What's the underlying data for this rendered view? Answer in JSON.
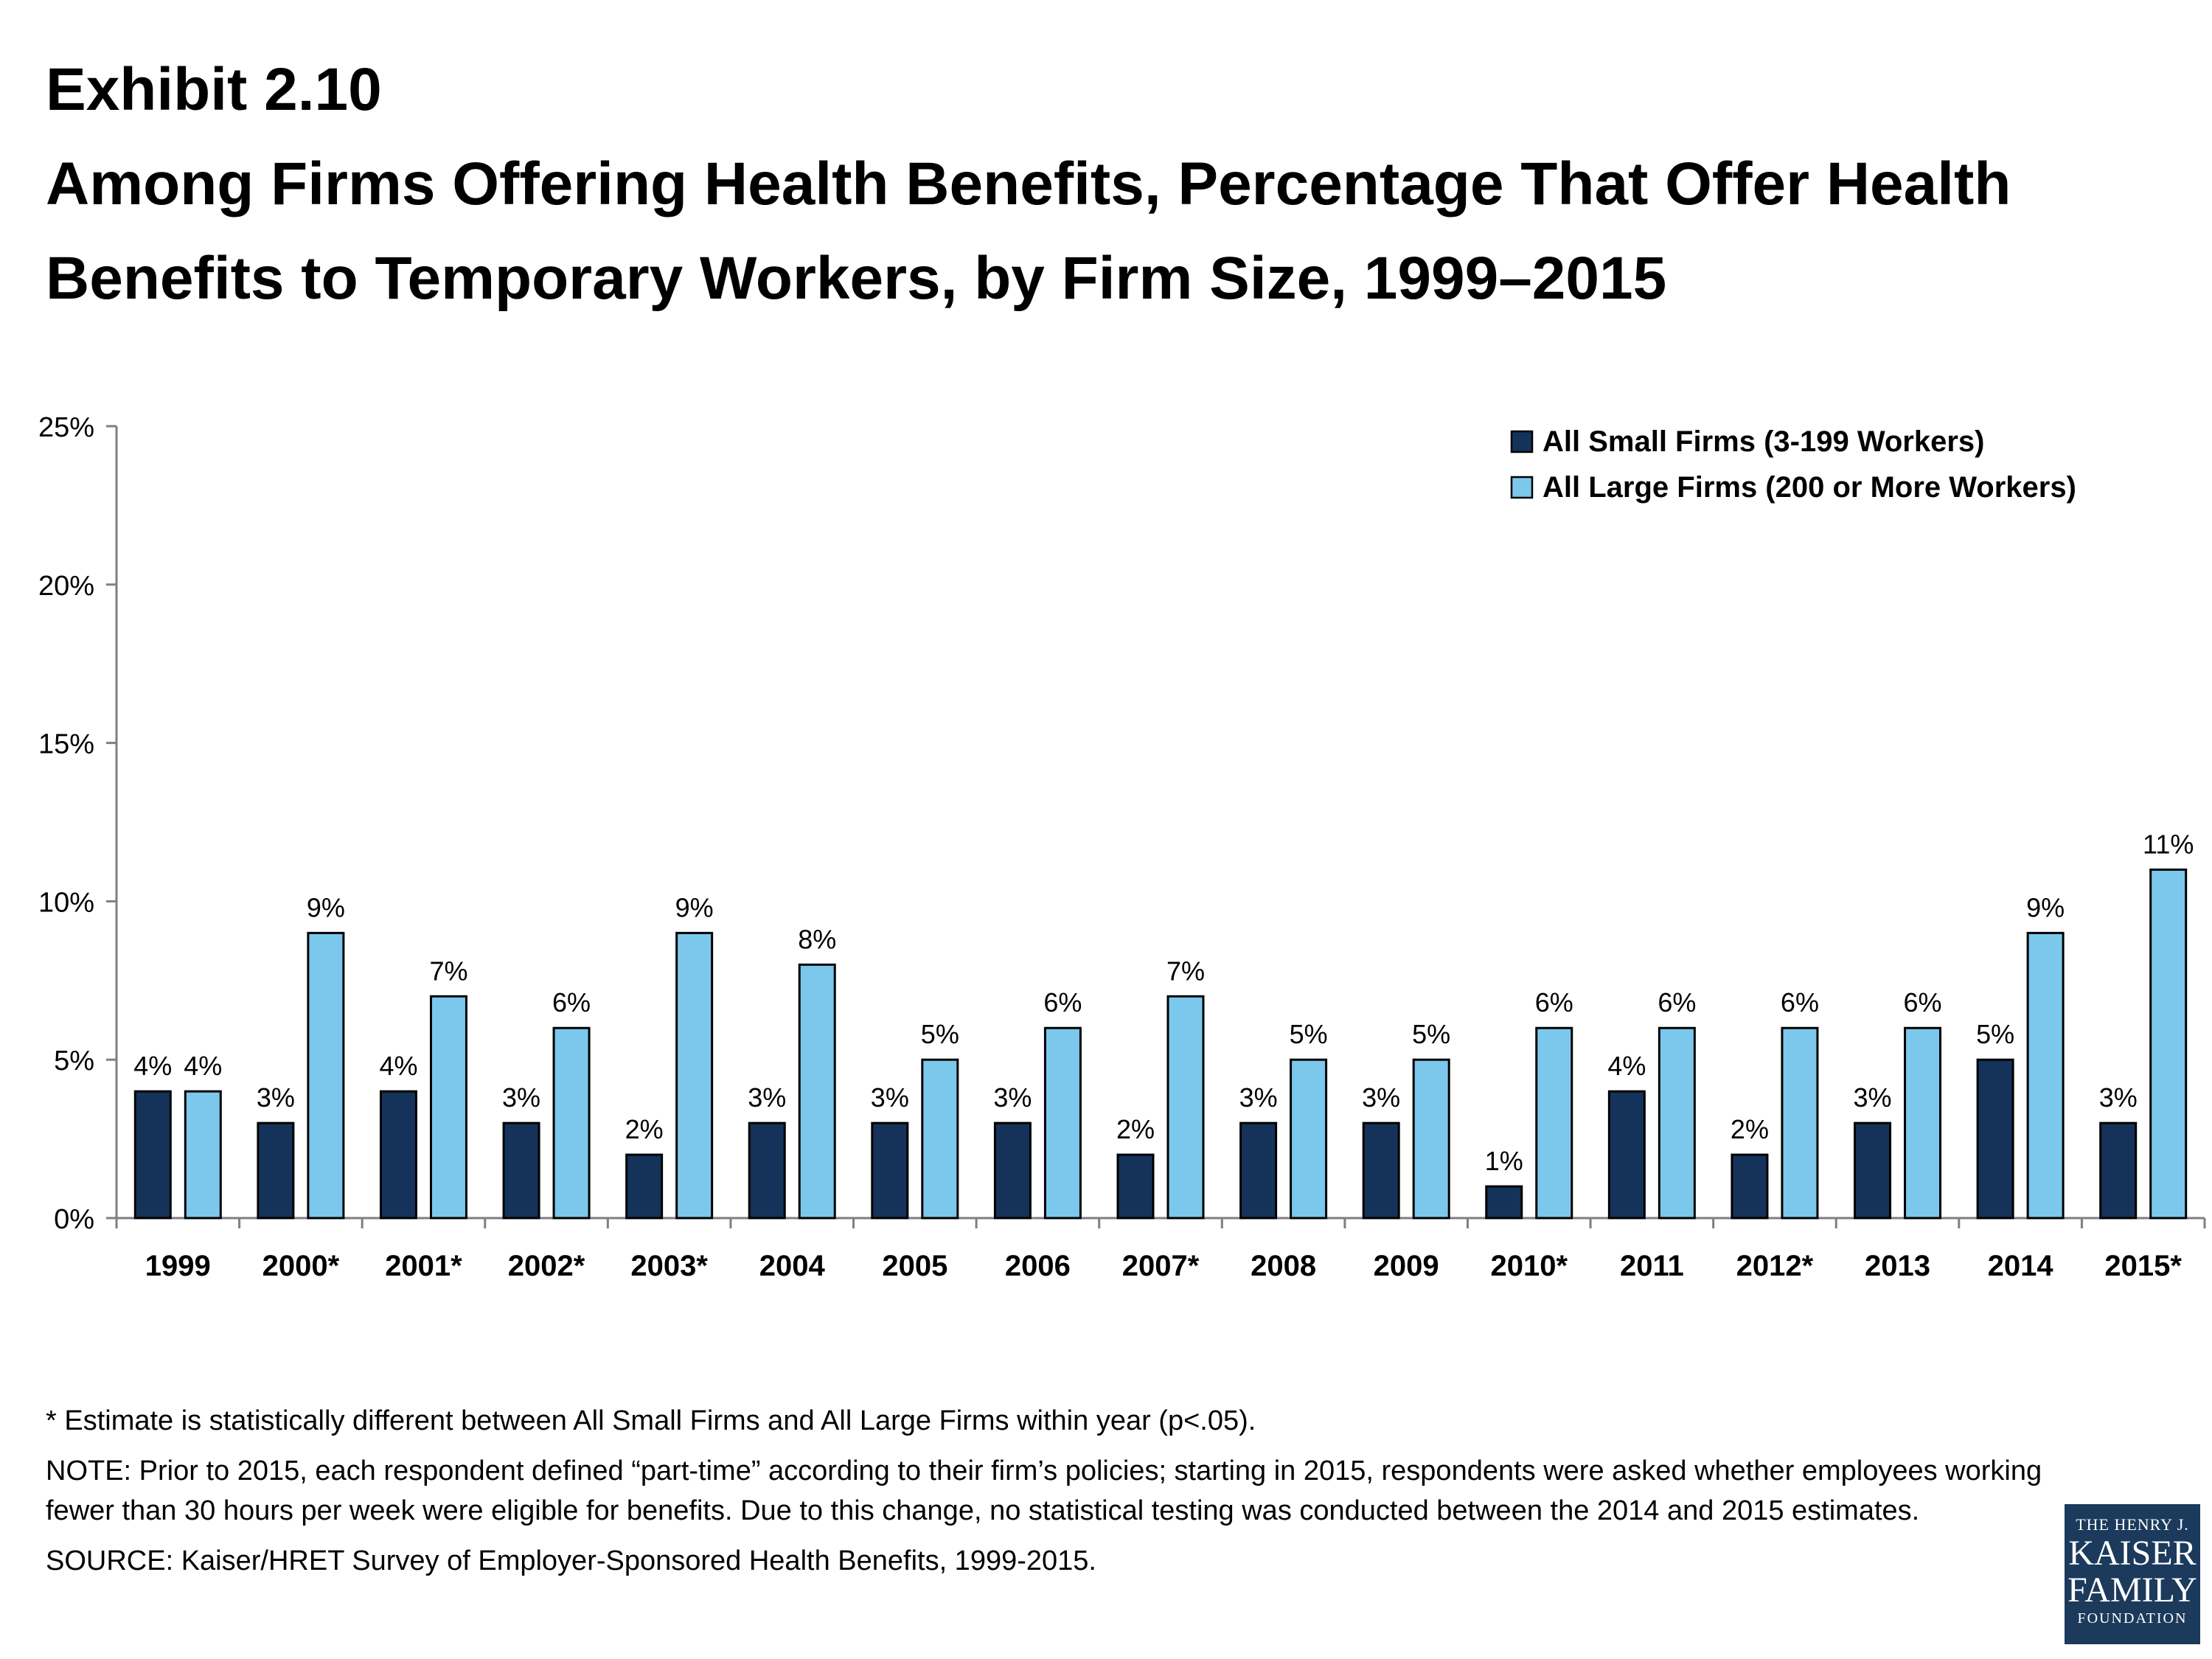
{
  "header": {
    "exhibit": "Exhibit 2.10",
    "title_line1": "Among Firms Offering Health Benefits, Percentage That Offer Health",
    "title_line2": "Benefits to Temporary Workers, by Firm Size, 1999–2015"
  },
  "colors": {
    "small_firms": "#15335a",
    "large_firms": "#7bc8ec",
    "axis": "#7f7f7f",
    "logo_bg": "#1b3a5c"
  },
  "chart_data": {
    "type": "bar",
    "title": "Among Firms Offering Health Benefits, Percentage That Offer Health Benefits to Temporary Workers, by Firm Size, 1999–2015",
    "xlabel": "",
    "ylabel": "",
    "ylim": [
      0,
      25
    ],
    "yticks": [
      "0%",
      "5%",
      "10%",
      "15%",
      "20%",
      "25%"
    ],
    "ytick_values": [
      0,
      5,
      10,
      15,
      20,
      25
    ],
    "grid": false,
    "legend_position": "top-right",
    "categories": [
      "1999",
      "2000*",
      "2001*",
      "2002*",
      "2003*",
      "2004",
      "2005",
      "2006",
      "2007*",
      "2008",
      "2009",
      "2010*",
      "2011",
      "2012*",
      "2013",
      "2014",
      "2015*"
    ],
    "series": [
      {
        "name": "All Small Firms (3-199 Workers)",
        "color": "#15335a",
        "values": [
          4,
          3,
          4,
          3,
          2,
          3,
          3,
          3,
          2,
          3,
          3,
          1,
          4,
          2,
          3,
          5,
          3
        ],
        "labels": [
          "4%",
          "3%",
          "4%",
          "3%",
          "2%",
          "3%",
          "3%",
          "3%",
          "2%",
          "3%",
          "3%",
          "1%",
          "4%",
          "2%",
          "3%",
          "5%",
          "3%"
        ]
      },
      {
        "name": "All Large Firms (200 or More Workers)",
        "color": "#7bc8ec",
        "values": [
          4,
          9,
          7,
          6,
          9,
          8,
          5,
          6,
          7,
          5,
          5,
          6,
          6,
          6,
          6,
          9,
          11
        ],
        "labels": [
          "4%",
          "9%",
          "7%",
          "6%",
          "9%",
          "8%",
          "5%",
          "6%",
          "7%",
          "5%",
          "5%",
          "6%",
          "6%",
          "6%",
          "6%",
          "9%",
          "11%"
        ]
      }
    ]
  },
  "notes": {
    "asterisk": "* Estimate is statistically different between All Small Firms and All Large Firms within year (p<.05).",
    "note": "NOTE: Prior to 2015, each respondent defined “part-time” according to their firm’s policies; starting in 2015, respondents were asked whether employees working fewer than 30 hours per week were eligible for benefits.  Due to this change, no statistical testing was conducted between the 2014 and 2015 estimates.",
    "source": "SOURCE:  Kaiser/HRET Survey of Employer-Sponsored Health Benefits, 1999-2015."
  },
  "logo": {
    "line1": "THE HENRY J.",
    "line2": "KAISER",
    "line3": "FAMILY",
    "line4": "FOUNDATION"
  }
}
